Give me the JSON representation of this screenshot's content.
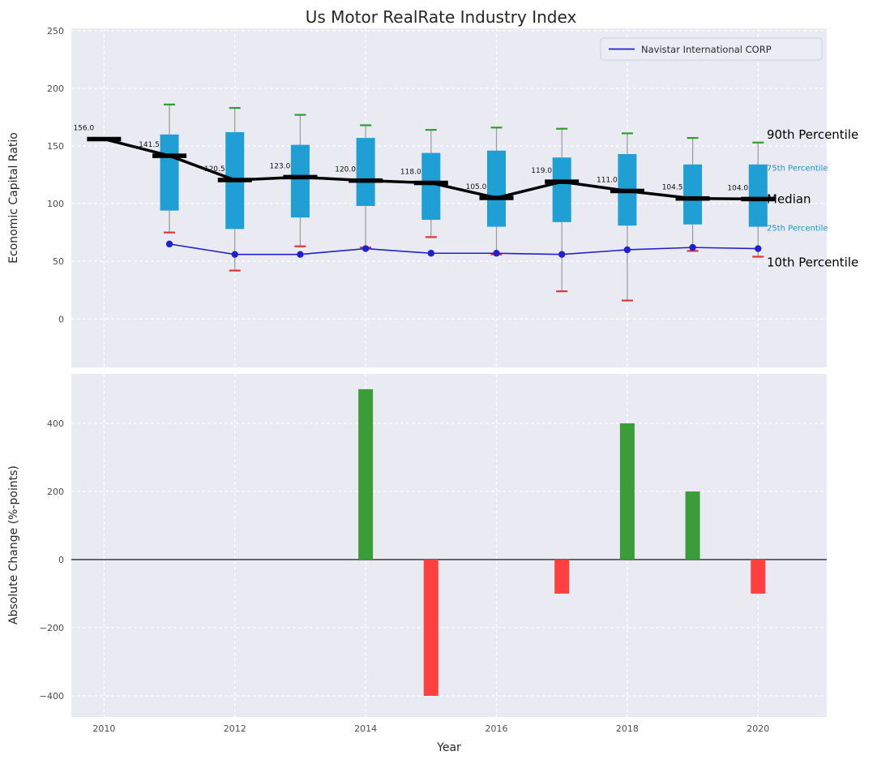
{
  "chart_data": {
    "type": "combo-boxplot-line-bar",
    "title": "Us Motor RealRate Industry Index",
    "xlabel": "Year",
    "xticks": [
      2010,
      2012,
      2014,
      2016,
      2018,
      2020
    ],
    "xlim": [
      2009.5,
      2021.05
    ],
    "colors": {
      "plot_bg": "#eaeaf2",
      "grid": "#ffffff",
      "box_fill": "#1f9fd4",
      "whisker": "#999999",
      "cap_high": "#2e9e2e",
      "cap_low": "#e23434",
      "median_line": "#000000",
      "navistar_line": "#2121cc",
      "bar_positive": "#3a9d3a",
      "bar_negative": "#ff4040",
      "tick_label": "#4d4d4d",
      "axis_label": "#262626",
      "annotation_small": "#2196c8",
      "annotation_large": "#000000",
      "legend_bg": "#ecedf4",
      "legend_border": "#cfd2dc",
      "legend_text": "#262a33"
    },
    "top_plot": {
      "ylabel": "Economic Capital Ratio",
      "ylim": [
        -42,
        252
      ],
      "yticks": [
        0,
        50,
        100,
        150,
        200,
        250
      ],
      "legend_label": "Navistar International CORP",
      "median_series": {
        "years": [
          2010,
          2011,
          2012,
          2013,
          2014,
          2015,
          2016,
          2017,
          2018,
          2019,
          2020
        ],
        "values": [
          156.0,
          141.5,
          120.5,
          123.0,
          120.0,
          118.0,
          105.0,
          119.0,
          111.0,
          104.5,
          104.0
        ],
        "labels": [
          "156.0",
          "141.5",
          "120.5",
          "123.0",
          "120.0",
          "118.0",
          "105.0",
          "119.0",
          "111.0",
          "104.5",
          "104.0"
        ]
      },
      "boxes": [
        {
          "year": 2011,
          "whisker_low": 75,
          "q1": 94,
          "median": 141.5,
          "q3": 160,
          "whisker_high": 186
        },
        {
          "year": 2012,
          "whisker_low": 42,
          "q1": 78,
          "median": 120.5,
          "q3": 162,
          "whisker_high": 183
        },
        {
          "year": 2013,
          "whisker_low": 63,
          "q1": 88,
          "median": 123.0,
          "q3": 151,
          "whisker_high": 177
        },
        {
          "year": 2014,
          "whisker_low": 62,
          "q1": 98,
          "median": 120.0,
          "q3": 157,
          "whisker_high": 168
        },
        {
          "year": 2015,
          "whisker_low": 71,
          "q1": 86,
          "median": 118.0,
          "q3": 144,
          "whisker_high": 164
        },
        {
          "year": 2016,
          "whisker_low": 56,
          "q1": 80,
          "median": 105.0,
          "q3": 146,
          "whisker_high": 166
        },
        {
          "year": 2017,
          "whisker_low": 24,
          "q1": 84,
          "median": 119.0,
          "q3": 140,
          "whisker_high": 165
        },
        {
          "year": 2018,
          "whisker_low": 16,
          "q1": 81,
          "median": 111.0,
          "q3": 143,
          "whisker_high": 161
        },
        {
          "year": 2019,
          "whisker_low": 59,
          "q1": 82,
          "median": 104.5,
          "q3": 134,
          "whisker_high": 157
        },
        {
          "year": 2020,
          "whisker_low": 54,
          "q1": 80,
          "median": 104.0,
          "q3": 134,
          "whisker_high": 153
        }
      ],
      "navistar_series": {
        "years": [
          2011,
          2012,
          2013,
          2014,
          2015,
          2016,
          2017,
          2018,
          2019,
          2020
        ],
        "values": [
          65,
          56,
          56,
          61,
          57,
          57,
          56,
          60,
          62,
          61
        ]
      },
      "percentile_annotations": [
        {
          "label": "90th Percentile",
          "value": 160,
          "size": "large"
        },
        {
          "label": "75th Percentile",
          "value": 131,
          "size": "small"
        },
        {
          "label": "Median",
          "value": 104,
          "size": "large"
        },
        {
          "label": "25th Percentile",
          "value": 79,
          "size": "small"
        },
        {
          "label": "10th Percentile",
          "value": 49,
          "size": "large"
        }
      ]
    },
    "bottom_plot": {
      "ylabel": "Absolute Change (%-points)",
      "ylim": [
        -462,
        545
      ],
      "yticks": [
        -400,
        -200,
        0,
        200,
        400
      ],
      "bars": [
        {
          "year": 2014,
          "value": 500
        },
        {
          "year": 2015,
          "value": -400
        },
        {
          "year": 2017,
          "value": -100
        },
        {
          "year": 2018,
          "value": 400
        },
        {
          "year": 2019,
          "value": 200
        },
        {
          "year": 2020,
          "value": -100
        }
      ]
    }
  }
}
